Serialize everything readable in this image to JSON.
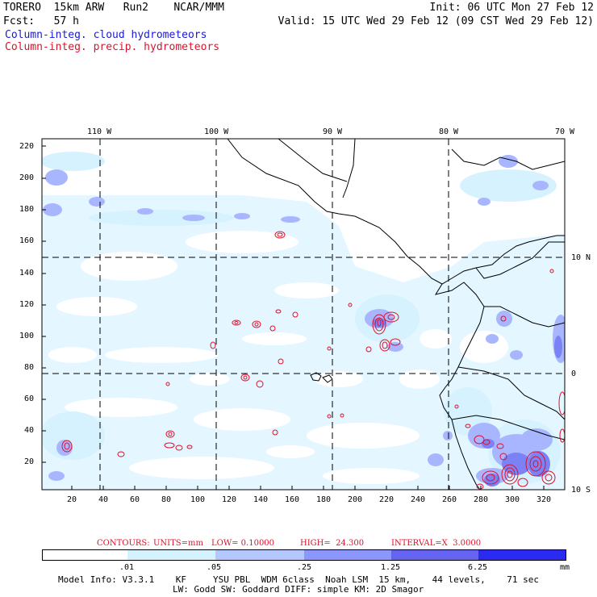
{
  "header": {
    "line1_left": "TORERO  15km ARW   Run2    NCAR/MMM",
    "line1_right": "Init: 06 UTC Mon 27 Feb 12",
    "line2_left": "Fcst:   57 h",
    "line2_right": "Valid: 15 UTC Wed 29 Feb 12 (09 CST Wed 29 Feb 12)",
    "legend_cloud": "Column-integ. cloud hydrometeors",
    "legend_precip": "Column-integ. precip. hydrometeors"
  },
  "map": {
    "lon_labels": [
      "110 W",
      "100 W",
      "90 W",
      "80 W",
      "70 W"
    ],
    "lat_labels": [
      "10 N",
      "0",
      "10 S"
    ],
    "y_ticks": [
      "220",
      "200",
      "180",
      "160",
      "140",
      "120",
      "100",
      "80",
      "60",
      "40",
      "20"
    ],
    "x_ticks": [
      "20",
      "40",
      "60",
      "80",
      "100",
      "120",
      "140",
      "160",
      "180",
      "200",
      "220",
      "240",
      "260",
      "280",
      "300",
      "320"
    ]
  },
  "contour_info": {
    "contours": "CONTOURS:",
    "units": "UNITS=mm",
    "low": "LOW= 0.10000",
    "high": "HIGH=  24.300",
    "interval": "INTERVAL=X  3.0000"
  },
  "colorbar": {
    "labels": [
      ".01",
      ".05",
      ".25",
      "1.25",
      "6.25"
    ],
    "unit": "mm",
    "colors": [
      "#ffffff",
      "#d6f2ff",
      "#b4c8ff",
      "#8c96ff",
      "#6464f0",
      "#3c3cf5",
      "#1414e6"
    ]
  },
  "footer": {
    "line1": "Model Info: V3.3.1    KF     YSU PBL  WDM 6class  Noah LSM  15 km,    44 levels,    71 sec",
    "line2": "LW: Godd SW: Goddard DIFF: simple KM: 2D Smagor"
  }
}
